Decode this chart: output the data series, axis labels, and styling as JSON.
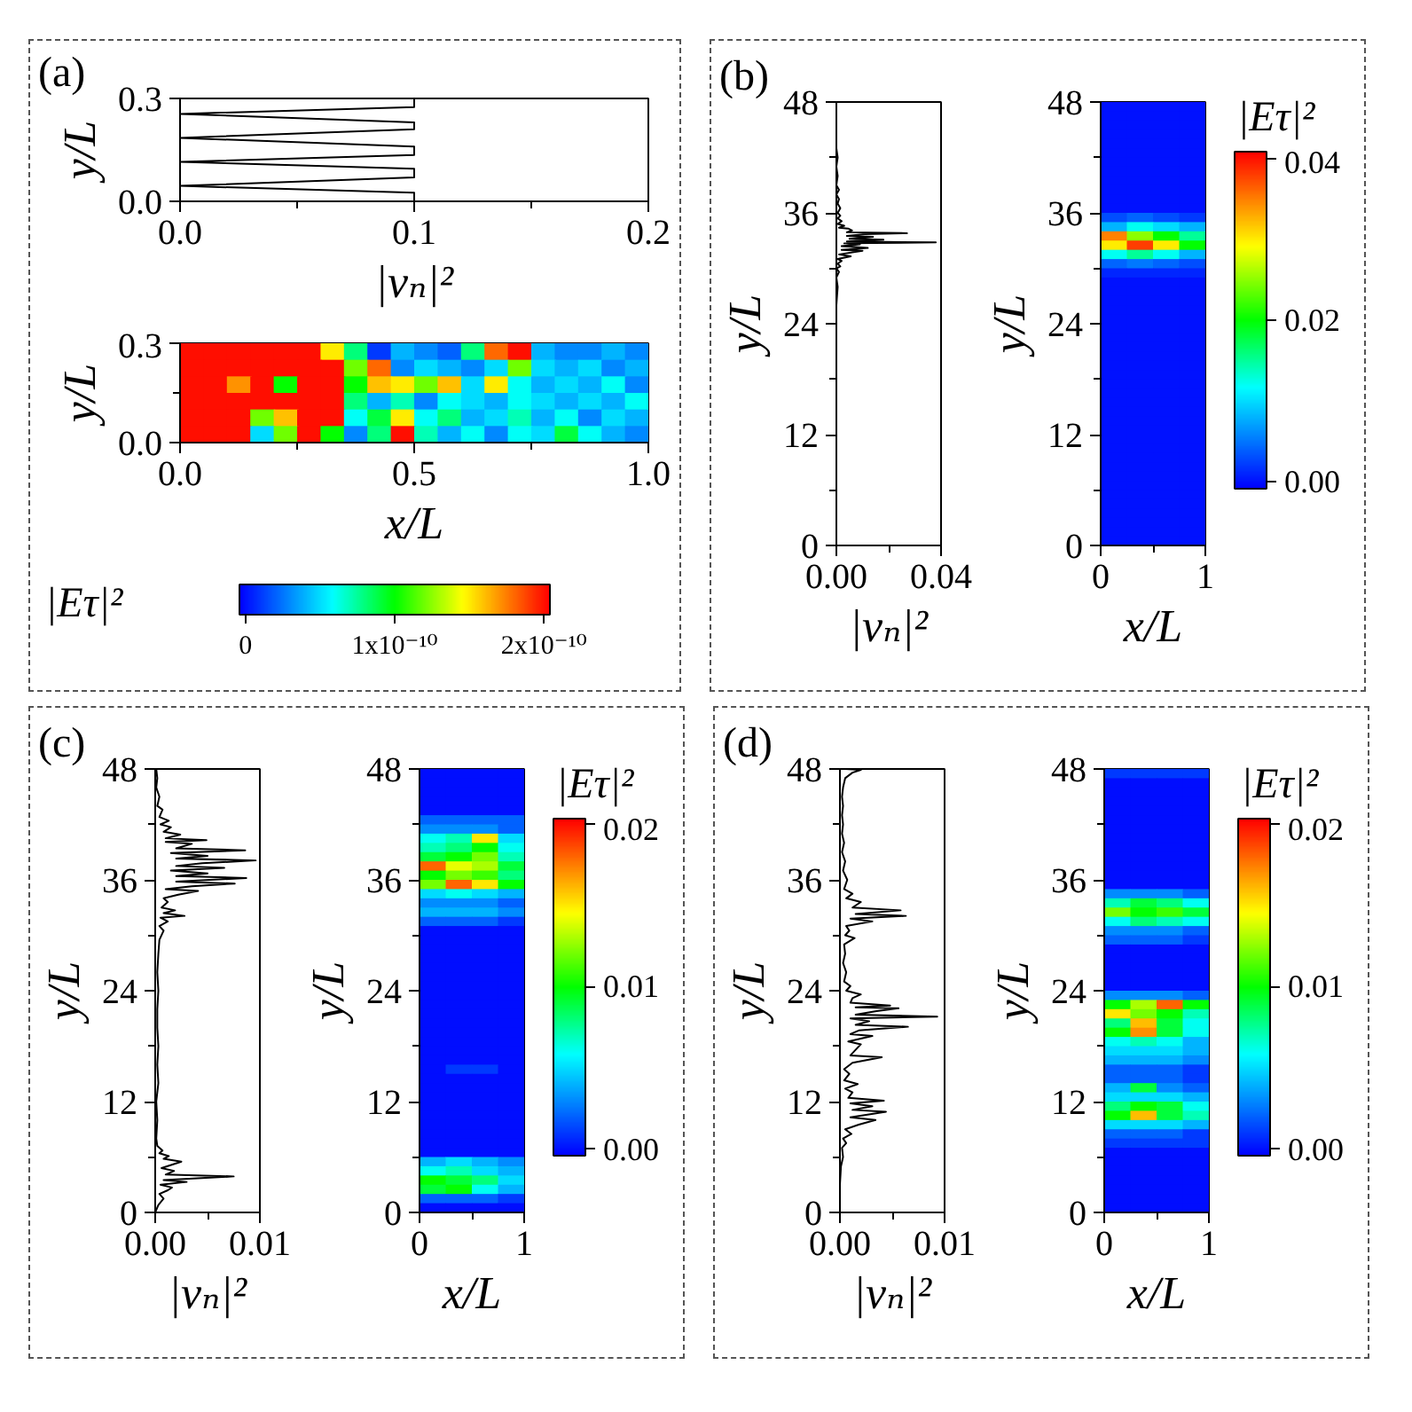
{
  "chart_data": [
    {
      "type": "line",
      "title": "(a)",
      "xlabel": "|vₙ|²",
      "ylabel": "y/L",
      "xlim": [
        0,
        0.2
      ],
      "ylim": [
        0,
        0.3
      ],
      "xticks": [
        {
          "value": 0,
          "label": "0.0"
        },
        {
          "value": 0.05,
          "label": null
        },
        0.1,
        {
          "value": 0.15,
          "label": null
        },
        0.2
      ],
      "yticks": [
        {
          "value": 0,
          "label": "0.0"
        },
        0.3
      ],
      "series": [
        {
          "color": "#000000",
          "x": [
            0.1,
            0.1,
            0,
            0.1,
            0.1,
            0,
            0.1,
            0.1,
            0,
            0.1,
            0.1,
            0,
            0.1,
            0.1
          ],
          "values": [
            0,
            0.025,
            0.045,
            0.07,
            0.095,
            0.115,
            0.135,
            0.16,
            0.185,
            0.21,
            0.23,
            0.255,
            0.275,
            0.3
          ]
        }
      ]
    },
    {
      "type": "heatmap",
      "xlabel": "x/L",
      "ylabel": "y/L",
      "clabel": "|Eτ|²",
      "xlim": [
        0,
        1
      ],
      "ylim": [
        0,
        0.3
      ],
      "xticks": [
        {
          "value": 0,
          "label": "0.0"
        },
        {
          "value": 0.25,
          "label": null
        },
        0.5,
        {
          "value": 0.75,
          "label": null
        },
        {
          "value": 1,
          "label": "1.0"
        }
      ],
      "yticks": [
        {
          "value": 0,
          "label": "0.0"
        },
        {
          "value": 0.15,
          "label": null
        },
        0.3
      ],
      "cells": [
        [
          2e-10,
          2e-10,
          2e-10,
          2e-10,
          2e-10,
          2e-10,
          1.5e-10,
          8e-11,
          1e-11,
          4e-11,
          3e-11,
          2e-11,
          8e-11,
          1.8e-10,
          2e-10,
          4e-11,
          3e-11,
          3e-11,
          4e-11,
          3e-11
        ],
        [
          2e-10,
          2e-10,
          2e-10,
          2e-10,
          2e-10,
          2e-10,
          2e-10,
          1.2e-10,
          1.8e-10,
          3e-11,
          5e-11,
          4e-11,
          3e-11,
          5e-11,
          1.2e-10,
          5e-11,
          4e-11,
          5e-11,
          3e-11,
          4e-11
        ],
        [
          2e-10,
          2e-10,
          1.7e-10,
          2e-10,
          1e-10,
          2e-10,
          2e-10,
          1e-10,
          1.6e-10,
          1.5e-10,
          1.2e-10,
          1.6e-10,
          5e-11,
          1.5e-10,
          6e-11,
          4e-11,
          5e-11,
          4e-11,
          6e-11,
          3e-11
        ],
        [
          2e-10,
          2e-10,
          2e-10,
          2e-10,
          2e-10,
          2e-10,
          2e-10,
          8e-11,
          4e-11,
          7e-11,
          3e-11,
          6e-11,
          5e-11,
          4e-11,
          6e-11,
          5e-11,
          4e-11,
          5e-11,
          4e-11,
          6e-11
        ],
        [
          2e-10,
          2e-10,
          2e-10,
          1.2e-10,
          1.6e-10,
          2e-10,
          2e-10,
          6e-11,
          9e-11,
          1.5e-10,
          6e-11,
          8e-11,
          4e-11,
          5e-11,
          7e-11,
          4e-11,
          6e-11,
          3e-11,
          5e-11,
          4e-11
        ],
        [
          2e-10,
          2e-10,
          2e-10,
          5e-11,
          1.2e-10,
          2e-10,
          1e-10,
          3e-11,
          8e-11,
          2e-10,
          7e-11,
          4e-11,
          6e-11,
          3e-11,
          6e-11,
          5e-11,
          9e-11,
          6e-11,
          4e-11,
          3e-11
        ]
      ],
      "clim": [
        -4e-12,
        2.04e-10
      ],
      "cticks": [
        0,
        {
          "value": 1e-10,
          "label": "1x10⁻¹⁰"
        },
        {
          "value": 2e-10,
          "label": "2x10⁻¹⁰"
        }
      ]
    },
    {
      "type": "line",
      "title": "(b)",
      "xlabel": "|vₙ|²",
      "ylabel": "y/L",
      "xlim": [
        0,
        0.04
      ],
      "ylim": [
        0,
        48
      ],
      "xticks": [
        {
          "value": 0,
          "label": "0.00"
        },
        {
          "value": 0.02,
          "label": null
        },
        0.04
      ],
      "yticks": [
        0,
        {
          "value": 6,
          "label": null
        },
        12,
        {
          "value": 18,
          "label": null
        },
        24,
        {
          "value": 30,
          "label": null
        },
        36,
        {
          "value": 42,
          "label": null
        },
        48
      ],
      "series": [
        {
          "color": "#000000",
          "x": [
            0,
            0,
            0,
            0,
            0.0005,
            0,
            0.001,
            0,
            0.0015,
            0.0005,
            0.002,
            0.0005,
            0.0055,
            0.001,
            0.01,
            0.002,
            0.012,
            0.002,
            0.009,
            0.003,
            0.038,
            0.004,
            0.018,
            0.005,
            0.014,
            0.004,
            0.011,
            0.027,
            0.004,
            0.006,
            0.0045,
            0.001,
            0.003,
            0.0005,
            0.002,
            0.0005,
            0.0015,
            0.0005,
            0.0015,
            0.0005,
            0.001,
            0,
            0.001,
            0,
            0.0005,
            0,
            0.0005,
            0,
            0
          ],
          "values": [
            0,
            10,
            20,
            26,
            28,
            29,
            29.6,
            30,
            30.2,
            30.5,
            30.8,
            31,
            31.3,
            31.5,
            31.9,
            32,
            32.2,
            32.4,
            32.6,
            32.7,
            32.8,
            32.9,
            33.1,
            33.2,
            33.4,
            33.5,
            33.7,
            33.8,
            33.9,
            34.1,
            34.3,
            34.4,
            34.6,
            34.8,
            35.1,
            35.4,
            35.7,
            36,
            36.5,
            37,
            37.5,
            38,
            38.5,
            39,
            40,
            41,
            42,
            43,
            48
          ]
        }
      ]
    },
    {
      "type": "heatmap",
      "xlabel": "x/L",
      "ylabel": "y/L",
      "clabel": "|Eτ|²",
      "xlim": [
        0,
        1
      ],
      "ylim": [
        0,
        48
      ],
      "xticks": [
        0,
        {
          "value": 0.5,
          "label": null
        },
        1
      ],
      "yticks": [
        0,
        {
          "value": 6,
          "label": null
        },
        12,
        {
          "value": 18,
          "label": null
        },
        24,
        {
          "value": 30,
          "label": null
        },
        36,
        {
          "value": 42,
          "label": null
        },
        48
      ],
      "cells": [
        [
          0,
          0,
          0,
          0
        ],
        [
          0,
          0,
          0,
          0
        ],
        [
          0,
          0,
          0,
          0
        ],
        [
          0,
          0,
          0,
          0
        ],
        [
          0,
          0,
          0,
          0
        ],
        [
          0,
          0,
          0,
          0
        ],
        [
          0,
          0,
          0,
          0
        ],
        [
          0,
          0,
          0,
          0
        ],
        [
          0,
          0,
          0,
          0
        ],
        [
          0,
          0,
          0,
          0
        ],
        [
          0,
          0,
          0,
          0
        ],
        [
          0,
          0,
          0,
          0
        ],
        [
          0.003,
          0.004,
          0.003,
          0.002
        ],
        [
          0.008,
          0.012,
          0.01,
          0.008
        ],
        [
          0.035,
          0.025,
          0.02,
          0.015
        ],
        [
          0.03,
          0.038,
          0.03,
          0.02
        ],
        [
          0.012,
          0.015,
          0.012,
          0.008
        ],
        [
          0.004,
          0.005,
          0.004,
          0.003
        ],
        [
          0.001,
          0.001,
          0.001,
          0.001
        ],
        [
          0,
          0,
          0,
          0
        ],
        [
          0,
          0,
          0,
          0
        ],
        [
          0,
          0,
          0,
          0
        ],
        [
          0,
          0,
          0,
          0
        ],
        [
          0,
          0,
          0,
          0
        ],
        [
          0,
          0,
          0,
          0
        ],
        [
          0,
          0,
          0,
          0
        ],
        [
          0,
          0,
          0,
          0
        ],
        [
          0,
          0,
          0,
          0
        ],
        [
          0,
          0,
          0,
          0
        ],
        [
          0,
          0,
          0,
          0
        ],
        [
          0,
          0,
          0,
          0
        ],
        [
          0,
          0,
          0,
          0
        ],
        [
          0,
          0,
          0,
          0
        ],
        [
          0,
          0,
          0,
          0
        ],
        [
          0,
          0,
          0,
          0
        ],
        [
          0,
          0,
          0,
          0
        ],
        [
          0,
          0,
          0,
          0
        ],
        [
          0,
          0,
          0,
          0
        ],
        [
          0,
          0,
          0,
          0
        ],
        [
          0,
          0,
          0,
          0
        ],
        [
          0,
          0,
          0,
          0
        ],
        [
          0,
          0,
          0,
          0
        ],
        [
          0,
          0,
          0,
          0
        ],
        [
          0,
          0,
          0,
          0
        ],
        [
          0,
          0,
          0,
          0
        ],
        [
          0,
          0,
          0,
          0
        ],
        [
          0,
          0,
          0,
          0
        ],
        [
          0,
          0,
          0,
          0
        ]
      ],
      "clim": [
        -0.0009,
        0.0409
      ],
      "cticks": [
        {
          "value": 0,
          "label": "0.00"
        },
        {
          "value": 0.02,
          "label": "0.02"
        },
        {
          "value": 0.04,
          "label": "0.04"
        }
      ]
    },
    {
      "type": "line",
      "title": "(c)",
      "xlabel": "|vₙ|²",
      "ylabel": "y/L",
      "xlim": [
        0,
        0.01
      ],
      "ylim": [
        0,
        48
      ],
      "xticks": [
        {
          "value": 0,
          "label": "0.00"
        },
        {
          "value": 0.005,
          "label": null
        },
        0.01
      ],
      "yticks": [
        0,
        {
          "value": 6,
          "label": null
        },
        12,
        {
          "value": 18,
          "label": null
        },
        24,
        {
          "value": 30,
          "label": null
        },
        36,
        {
          "value": 42,
          "label": null
        },
        48
      ],
      "series": [
        {
          "color": "#000000",
          "x": [
            0,
            0.0003,
            0.0008,
            0.0004,
            0.0012,
            0.0016,
            0.0005,
            0.003,
            0.0008,
            0.0075,
            0.001,
            0.0018,
            0.0006,
            0.0025,
            0.0008,
            0.0013,
            0.0004,
            0.0007,
            0.0002,
            0.0001,
            0.0002,
            0.0001,
            0.0003,
            0.0002,
            0.0003,
            0.0002,
            0.0002,
            0.0003,
            0.0002,
            0.0003,
            0.0004,
            0.0008,
            0.0004,
            0.0012,
            0.0005,
            0.0028,
            0.0008,
            0.0019,
            0.0006,
            0.0012,
            0.0008,
            0.0022,
            0.0041,
            0.001,
            0.0035,
            0.0076,
            0.002,
            0.0087,
            0.002,
            0.005,
            0.0015,
            0.0066,
            0.002,
            0.0045,
            0.0096,
            0.002,
            0.005,
            0.0015,
            0.0086,
            0.002,
            0.0035,
            0.001,
            0.0049,
            0.001,
            0.0024,
            0.0008,
            0.0015,
            0.0005,
            0.0013,
            0.0004,
            0.0007,
            0.0002,
            0.0004,
            0.0001,
            0.0002,
            0.0001
          ],
          "values": [
            0,
            0.8,
            1.5,
            2,
            2.4,
            2.7,
            3,
            3.3,
            3.5,
            3.9,
            4.1,
            4.5,
            4.8,
            5.5,
            5.8,
            6.1,
            6.4,
            6.7,
            7.2,
            8,
            10,
            12,
            14,
            16,
            18,
            20,
            22,
            24,
            26,
            28,
            29.5,
            30.5,
            31,
            31.5,
            31.9,
            32.1,
            32.4,
            32.7,
            33,
            33.6,
            34,
            34.4,
            34.8,
            35,
            35.3,
            35.6,
            35.8,
            36.2,
            36.4,
            36.7,
            37,
            37.3,
            37.5,
            37.8,
            38.1,
            38.3,
            38.6,
            38.9,
            39.2,
            39.4,
            39.9,
            40.1,
            40.3,
            40.5,
            40.9,
            41.2,
            41.7,
            42,
            42.4,
            42.8,
            43.6,
            44,
            45,
            46,
            47,
            48
          ]
        }
      ]
    },
    {
      "type": "heatmap",
      "xlabel": "x/L",
      "ylabel": "y/L",
      "clabel": "|Eτ|²",
      "xlim": [
        0,
        1
      ],
      "ylim": [
        0,
        48
      ],
      "xticks": [
        0,
        {
          "value": 0.5,
          "label": null
        },
        1
      ],
      "yticks": [
        0,
        {
          "value": 6,
          "label": null
        },
        12,
        {
          "value": 18,
          "label": null
        },
        24,
        {
          "value": 30,
          "label": null
        },
        36,
        {
          "value": 42,
          "label": null
        },
        48
      ],
      "cells": [
        [
          0,
          0,
          0,
          0
        ],
        [
          0,
          0,
          0,
          0
        ],
        [
          0,
          0,
          0,
          0
        ],
        [
          0,
          0,
          0,
          0
        ],
        [
          0,
          0,
          0,
          0
        ],
        [
          0.002,
          0.002,
          0.002,
          0.002
        ],
        [
          0.003,
          0.003,
          0.003,
          0.002
        ],
        [
          0.006,
          0.007,
          0.015,
          0.005
        ],
        [
          0.007,
          0.008,
          0.01,
          0.006
        ],
        [
          0.009,
          0.01,
          0.012,
          0.007
        ],
        [
          0.018,
          0.014,
          0.013,
          0.009
        ],
        [
          0.01,
          0.012,
          0.011,
          0.008
        ],
        [
          0.012,
          0.018,
          0.015,
          0.01
        ],
        [
          0.005,
          0.006,
          0.005,
          0.004
        ],
        [
          0.003,
          0.003,
          0.003,
          0.002
        ],
        [
          0.004,
          0.004,
          0.004,
          0.003
        ],
        [
          0.002,
          0.002,
          0.002,
          0.001
        ],
        [
          0,
          0,
          0,
          0
        ],
        [
          0,
          0,
          0,
          0
        ],
        [
          0,
          0,
          0,
          0
        ],
        [
          0,
          0,
          0,
          0
        ],
        [
          0,
          0,
          0,
          0
        ],
        [
          0,
          0,
          0,
          0
        ],
        [
          0,
          0,
          0,
          0
        ],
        [
          0,
          0,
          0,
          0
        ],
        [
          0,
          0,
          0,
          0
        ],
        [
          0,
          0,
          0,
          0
        ],
        [
          0,
          0,
          0,
          0
        ],
        [
          0,
          0,
          0,
          0
        ],
        [
          0,
          0,
          0,
          0
        ],
        [
          0,
          0,
          0,
          0
        ],
        [
          0,
          0,
          0,
          0
        ],
        [
          0,
          0.001,
          0.001,
          0
        ],
        [
          0,
          0,
          0,
          0
        ],
        [
          0,
          0,
          0,
          0
        ],
        [
          0,
          0,
          0,
          0
        ],
        [
          0,
          0,
          0,
          0
        ],
        [
          0,
          0,
          0,
          0
        ],
        [
          0,
          0,
          0,
          0
        ],
        [
          0,
          0,
          0,
          0
        ],
        [
          0,
          0,
          0,
          0
        ],
        [
          0,
          0,
          0,
          0
        ],
        [
          0.004,
          0.005,
          0.004,
          0.003
        ],
        [
          0.006,
          0.007,
          0.005,
          0.004
        ],
        [
          0.01,
          0.009,
          0.008,
          0.005
        ],
        [
          0.009,
          0.01,
          0.006,
          0.004
        ],
        [
          0.002,
          0.002,
          0.002,
          0.001
        ],
        [
          0,
          0,
          0,
          0
        ]
      ],
      "clim": [
        -0.0004,
        0.0203
      ],
      "cticks": [
        {
          "value": 0,
          "label": "0.00"
        },
        0.01,
        0.02
      ]
    },
    {
      "type": "line",
      "title": "(d)",
      "xlabel": "|vₙ|²",
      "ylabel": "y/L",
      "xlim": [
        0,
        0.01
      ],
      "ylim": [
        0,
        48
      ],
      "xticks": [
        {
          "value": 0,
          "label": "0.00"
        },
        {
          "value": 0.005,
          "label": null
        },
        0.01
      ],
      "yticks": [
        0,
        {
          "value": 6,
          "label": null
        },
        12,
        {
          "value": 18,
          "label": null
        },
        24,
        {
          "value": 30,
          "label": null
        },
        36,
        {
          "value": 42,
          "label": null
        },
        48
      ],
      "series": [
        {
          "color": "#000000",
          "x": [
            0,
            0,
            0.0001,
            0.0003,
            0.0002,
            0.0006,
            0.0003,
            0.0011,
            0.0005,
            0.0018,
            0.0034,
            0.001,
            0.0044,
            0.0012,
            0.0031,
            0.001,
            0.0042,
            0.0008,
            0.0012,
            0.0005,
            0.0017,
            0.0004,
            0.0009,
            0.0004,
            0.0012,
            0.004,
            0.001,
            0.0015,
            0.002,
            0.0008,
            0.0031,
            0.001,
            0.0018,
            0.0065,
            0.0015,
            0.0028,
            0.001,
            0.0093,
            0.0015,
            0.0035,
            0.0056,
            0.0015,
            0.0048,
            0.001,
            0.0012,
            0.002,
            0.0006,
            0.001,
            0.0004,
            0.0006,
            0.0003,
            0.0005,
            0.0004,
            0.0014,
            0.0005,
            0.0009,
            0.0006,
            0.0031,
            0.001,
            0.0063,
            0.0015,
            0.0058,
            0.0012,
            0.002,
            0.0006,
            0.0012,
            0.0004,
            0.0007,
            0.0003,
            0.0005,
            0.0002,
            0.0004,
            0.0002,
            0.0003,
            0.0002,
            0.0003,
            0.0002,
            0.0003,
            0.0005,
            0.0012,
            0.002,
            0.0005
          ],
          "values": [
            0,
            3,
            5,
            6,
            7,
            7.5,
            8,
            8.5,
            9,
            9.5,
            10,
            10.3,
            10.9,
            11.1,
            11.5,
            11.8,
            12.1,
            12.4,
            13,
            13.4,
            13.9,
            14.3,
            15,
            15.5,
            16.2,
            16.8,
            17,
            17.6,
            18.2,
            18.5,
            19.1,
            19.3,
            19.7,
            20.1,
            20.3,
            20.7,
            21,
            21.2,
            21.4,
            21.8,
            22.1,
            22.2,
            22.4,
            22.7,
            23.2,
            23.6,
            24,
            24.5,
            25,
            26,
            27,
            28,
            29,
            29.7,
            30,
            30.5,
            31,
            31.5,
            31.8,
            32.1,
            32.3,
            32.7,
            33,
            33.6,
            34,
            34.5,
            35,
            36,
            37,
            38,
            39,
            40,
            41,
            42,
            43,
            44,
            45,
            46,
            47,
            47.6,
            47.9,
            48
          ]
        }
      ]
    },
    {
      "type": "heatmap",
      "xlabel": "x/L",
      "ylabel": "y/L",
      "clabel": "|Eτ|²",
      "xlim": [
        0,
        1
      ],
      "ylim": [
        0,
        48
      ],
      "xticks": [
        0,
        {
          "value": 0.5,
          "label": null
        },
        1
      ],
      "yticks": [
        0,
        {
          "value": 6,
          "label": null
        },
        12,
        {
          "value": 18,
          "label": null
        },
        24,
        {
          "value": 30,
          "label": null
        },
        36,
        {
          "value": 42,
          "label": null
        },
        48
      ],
      "cells": [
        [
          0.001,
          0.001,
          0.001,
          0.001
        ],
        [
          0,
          0,
          0,
          0
        ],
        [
          0,
          0,
          0,
          0
        ],
        [
          0,
          0,
          0,
          0
        ],
        [
          0,
          0,
          0,
          0
        ],
        [
          0,
          0,
          0,
          0
        ],
        [
          0,
          0,
          0,
          0
        ],
        [
          0,
          0,
          0,
          0
        ],
        [
          0,
          0,
          0,
          0
        ],
        [
          0,
          0,
          0,
          0
        ],
        [
          0,
          0,
          0,
          0
        ],
        [
          0,
          0,
          0,
          0
        ],
        [
          0,
          0,
          0,
          0
        ],
        [
          0.003,
          0.003,
          0.003,
          0.002
        ],
        [
          0.007,
          0.009,
          0.008,
          0.006
        ],
        [
          0.012,
          0.01,
          0.011,
          0.009
        ],
        [
          0.006,
          0.008,
          0.007,
          0.006
        ],
        [
          0.003,
          0.003,
          0.003,
          0.002
        ],
        [
          0.002,
          0.002,
          0.002,
          0.001
        ],
        [
          0,
          0,
          0,
          0
        ],
        [
          0,
          0,
          0,
          0
        ],
        [
          0,
          0,
          0,
          0
        ],
        [
          0,
          0,
          0,
          0
        ],
        [
          0,
          0,
          0,
          0
        ],
        [
          0.003,
          0.003,
          0.003,
          0.002
        ],
        [
          0.01,
          0.013,
          0.018,
          0.01
        ],
        [
          0.015,
          0.012,
          0.01,
          0.007
        ],
        [
          0.008,
          0.016,
          0.009,
          0.006
        ],
        [
          0.01,
          0.017,
          0.009,
          0.006
        ],
        [
          0.006,
          0.007,
          0.006,
          0.004
        ],
        [
          0.005,
          0.005,
          0.005,
          0.004
        ],
        [
          0.004,
          0.004,
          0.004,
          0.003
        ],
        [
          0.002,
          0.002,
          0.002,
          0.001
        ],
        [
          0.002,
          0.002,
          0.002,
          0.001
        ],
        [
          0.004,
          0.009,
          0.003,
          0.002
        ],
        [
          0.005,
          0.005,
          0.005,
          0.004
        ],
        [
          0.008,
          0.01,
          0.009,
          0.006
        ],
        [
          0.01,
          0.016,
          0.009,
          0.007
        ],
        [
          0.005,
          0.005,
          0.005,
          0.004
        ],
        [
          0.002,
          0.002,
          0.002,
          0.001
        ],
        [
          0.001,
          0.001,
          0.001,
          0.001
        ],
        [
          0,
          0,
          0,
          0
        ],
        [
          0,
          0,
          0,
          0
        ],
        [
          0,
          0,
          0,
          0
        ],
        [
          0,
          0,
          0,
          0
        ],
        [
          0,
          0,
          0,
          0
        ],
        [
          0,
          0,
          0,
          0
        ],
        [
          0,
          0,
          0,
          0
        ]
      ],
      "clim": [
        -0.0004,
        0.0203
      ],
      "cticks": [
        {
          "value": 0,
          "label": "0.00"
        },
        0.01,
        0.02
      ]
    }
  ]
}
